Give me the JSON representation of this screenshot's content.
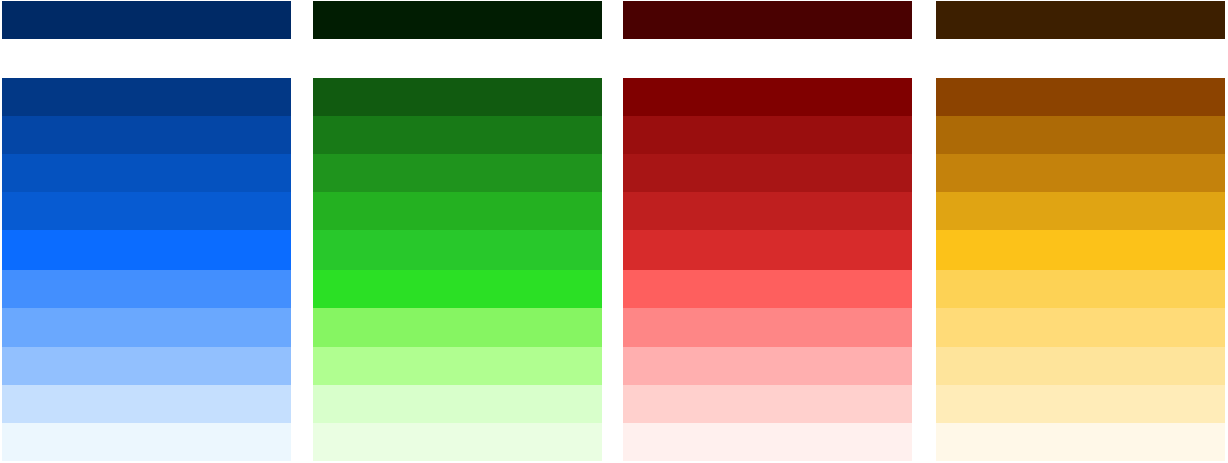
{
  "palettes": [
    {
      "name": "blue",
      "header_color": "#002a66",
      "shades": [
        "#023886",
        "#0446a6",
        "#0552bf",
        "#075bd2",
        "#0b6cff",
        "#438ffe",
        "#6aa8fe",
        "#92c0fe",
        "#c5dffe",
        "#ecf7fe"
      ]
    },
    {
      "name": "green",
      "header_color": "#011d02",
      "shades": [
        "#115b10",
        "#187a17",
        "#1f941d",
        "#24b121",
        "#28c82b",
        "#2be025",
        "#86f562",
        "#b0fe90",
        "#d8ffcb",
        "#eafee2"
      ]
    },
    {
      "name": "red",
      "header_color": "#4a0101",
      "shades": [
        "#800000",
        "#9a0e0e",
        "#a81515",
        "#bf1f1f",
        "#d72b2b",
        "#fe5f5e",
        "#fe8686",
        "#ffafaf",
        "#ffd0cd",
        "#fff0ee"
      ]
    },
    {
      "name": "amber",
      "header_color": "#3d1f00",
      "shades": [
        "#8c4300",
        "#ad6a06",
        "#c4820c",
        "#e0a413",
        "#fcc219",
        "#fdd255",
        "#ffdb78",
        "#fee49b",
        "#ffecb8",
        "#fff8e8"
      ]
    }
  ]
}
